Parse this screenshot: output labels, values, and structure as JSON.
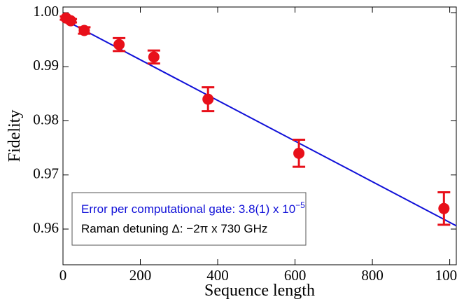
{
  "chart_data": {
    "type": "scatter",
    "x_label": "Sequence length",
    "y_label": "Fidelity",
    "xlim": [
      0,
      1017
    ],
    "ylim": [
      0.9534,
      1.00104
    ],
    "xticks": [
      0,
      200,
      400,
      600,
      800,
      1000
    ],
    "yticks": [
      0.96,
      0.97,
      0.98,
      0.99,
      {
        "value": 1.0,
        "label": "1.00"
      }
    ],
    "series": [
      {
        "color": "#e8101a",
        "x": [
          8,
          20,
          55,
          145,
          235,
          375,
          610,
          985
        ],
        "values": [
          0.999,
          0.9985,
          0.9967,
          0.9941,
          0.9918,
          0.984,
          0.974,
          0.9638
        ],
        "errors": [
          0.0003,
          0.0003,
          0.0006,
          0.0012,
          0.0012,
          0.0022,
          0.0025,
          0.003
        ]
      }
    ],
    "fit": {
      "color": "#1010d8",
      "x": [
        0,
        1017
      ],
      "values": [
        0.9988,
        0.9606
      ]
    },
    "annotations": [
      {
        "text": "Error per computational gate: 3.8(1) x 10",
        "superscript": "−5",
        "color": "#1010d8"
      },
      {
        "text": "Raman detuning Δ: −2π x 730 GHz",
        "color": "#000000"
      }
    ]
  }
}
